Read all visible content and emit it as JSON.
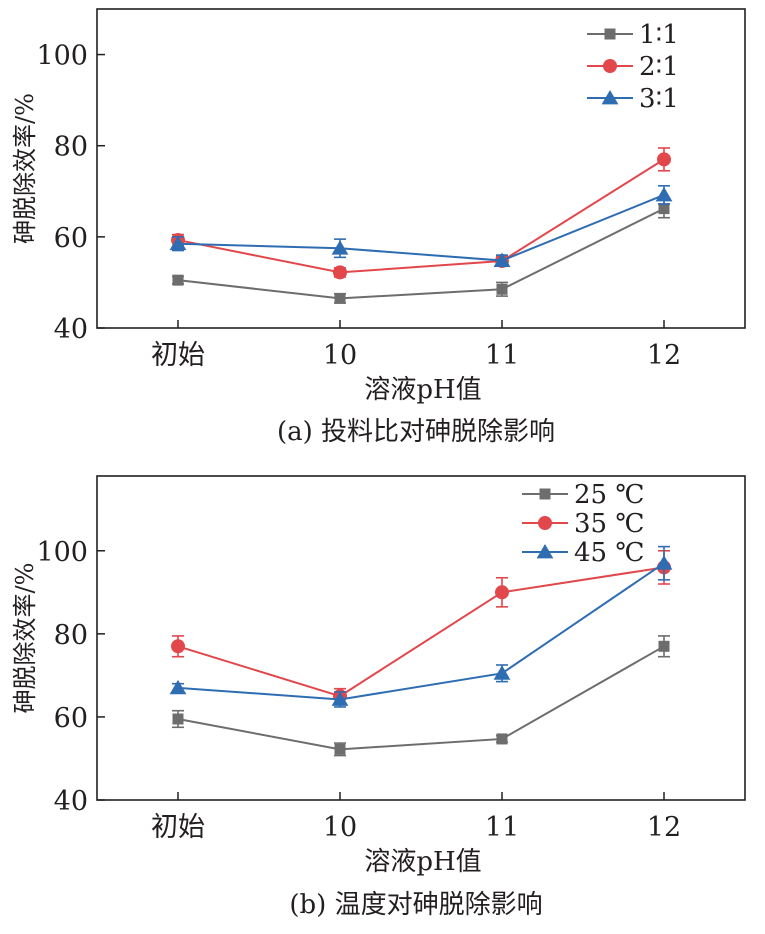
{
  "chart_data": [
    {
      "type": "line",
      "panel_caption": "(a) 投料比对砷脱除影响",
      "xlabel": "溶液pH值",
      "ylabel": "砷脱除效率/%",
      "categories": [
        "初始",
        "10",
        "11",
        "12"
      ],
      "ylim": [
        40,
        110
      ],
      "yticks": [
        40,
        60,
        80,
        100
      ],
      "grid": false,
      "legend_position": "top-right",
      "series": [
        {
          "name": "1∶1",
          "color": "#6d6d6d",
          "marker": "square",
          "values": [
            50.5,
            46.5,
            48.5,
            66.2
          ],
          "errors": [
            0.8,
            1.0,
            1.5,
            2.0
          ]
        },
        {
          "name": "2∶1",
          "color": "#e2474b",
          "marker": "circle",
          "values": [
            59.3,
            52.2,
            54.7,
            77.0
          ],
          "errors": [
            1.2,
            1.0,
            1.0,
            2.5
          ]
        },
        {
          "name": "3∶1",
          "color": "#2f6db3",
          "marker": "triangle",
          "values": [
            58.5,
            57.5,
            54.8,
            69.2
          ],
          "errors": [
            1.5,
            2.0,
            1.2,
            2.0
          ]
        }
      ]
    },
    {
      "type": "line",
      "panel_caption": "(b) 温度对砷脱除影响",
      "xlabel": "溶液pH值",
      "ylabel": "砷脱除效率/%",
      "categories": [
        "初始",
        "10",
        "11",
        "12"
      ],
      "ylim": [
        40,
        118
      ],
      "yticks": [
        40,
        60,
        80,
        100
      ],
      "grid": false,
      "legend_position": "top-right",
      "series": [
        {
          "name": "25 ℃",
          "color": "#6d6d6d",
          "marker": "square",
          "values": [
            59.5,
            52.2,
            54.7,
            77.0
          ],
          "errors": [
            2.0,
            1.5,
            0.8,
            2.5
          ]
        },
        {
          "name": "35 ℃",
          "color": "#e2474b",
          "marker": "circle",
          "values": [
            77.0,
            65.0,
            90.0,
            96.0
          ],
          "errors": [
            2.5,
            1.8,
            3.5,
            4.0
          ]
        },
        {
          "name": "45 ℃",
          "color": "#2f6db3",
          "marker": "triangle",
          "values": [
            67.0,
            64.2,
            70.5,
            97.0
          ],
          "errors": [
            1.0,
            1.8,
            2.0,
            4.0
          ]
        }
      ]
    }
  ]
}
